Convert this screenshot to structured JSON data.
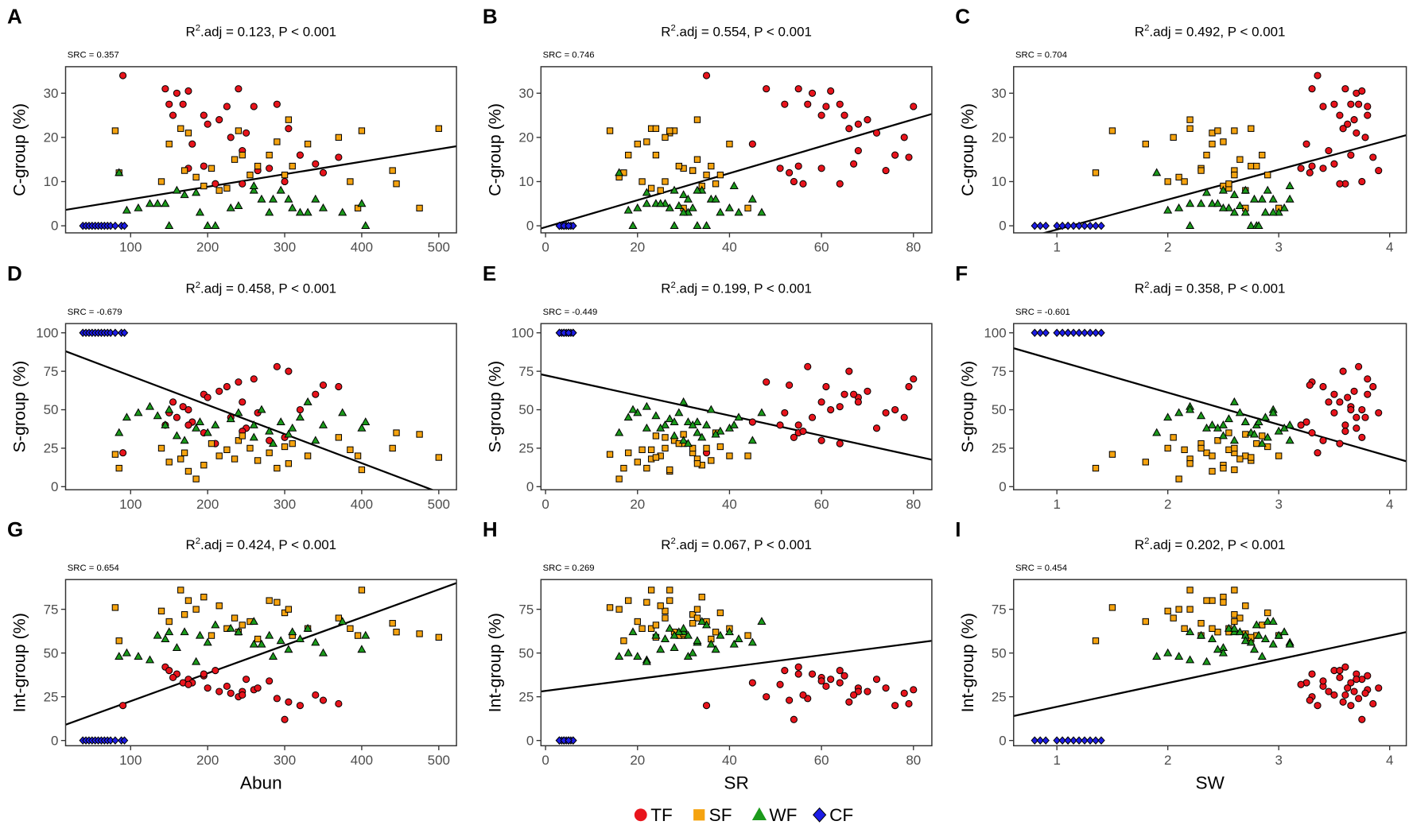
{
  "chart_data": {
    "type": "scatter",
    "grid": false,
    "legend_position": "bottom",
    "groups": [
      {
        "name": "TF",
        "color": "#e8141c",
        "shape": "circle"
      },
      {
        "name": "SF",
        "color": "#f5a30f",
        "shape": "square"
      },
      {
        "name": "WF",
        "color": "#1b9a1b",
        "shape": "triangle"
      },
      {
        "name": "CF",
        "color": "#1c1ce6",
        "shape": "diamond"
      }
    ],
    "x_axes": [
      {
        "label": "Abun",
        "lim": [
          15.6,
          523
        ],
        "ticks": [
          100,
          200,
          300,
          400,
          500
        ]
      },
      {
        "label": "SR",
        "lim": [
          -1,
          84
        ],
        "ticks": [
          0,
          20,
          40,
          60,
          80
        ]
      },
      {
        "label": "SW",
        "lim": [
          0.61,
          4.15
        ],
        "ticks": [
          1,
          2,
          3,
          4
        ]
      }
    ],
    "y_axes": [
      {
        "label": "C-group (%)",
        "lim": [
          -1.6,
          36
        ],
        "ticks": [
          0,
          10,
          20,
          30
        ]
      },
      {
        "label": "S-group (%)",
        "lim": [
          -2,
          106
        ],
        "ticks": [
          0,
          25,
          50,
          75,
          100
        ]
      },
      {
        "label": "Int-group (%)",
        "lim": [
          -3,
          92
        ],
        "ticks": [
          0,
          25,
          50,
          75
        ]
      }
    ],
    "sample_fields": [
      "Abun",
      "SR",
      "SW",
      "C-group (%)",
      "S-group (%)",
      "Int-group (%)"
    ],
    "samples": {
      "TF": [
        [
          90,
          35,
          3.35,
          34,
          22,
          20
        ],
        [
          145,
          55,
          3.6,
          31,
          40,
          42
        ],
        [
          160,
          58,
          3.7,
          30,
          45,
          38
        ],
        [
          175,
          62,
          3.75,
          30.5,
          50,
          35
        ],
        [
          150,
          52,
          3.5,
          27.5,
          48,
          40
        ],
        [
          168,
          64,
          3.65,
          27.5,
          52,
          33
        ],
        [
          155,
          60,
          3.55,
          25,
          55,
          36
        ],
        [
          195,
          65,
          3.8,
          25,
          60,
          37
        ],
        [
          200,
          68,
          3.62,
          23,
          58,
          30
        ],
        [
          215,
          70,
          3.68,
          24,
          62,
          28
        ],
        [
          240,
          48,
          3.3,
          31,
          68,
          25
        ],
        [
          225,
          61,
          3.4,
          27,
          65,
          31
        ],
        [
          260,
          80,
          3.8,
          27,
          70,
          29
        ],
        [
          290,
          57,
          3.72,
          27.5,
          78,
          24
        ],
        [
          305,
          66,
          3.58,
          22,
          75,
          22
        ],
        [
          180,
          45,
          3.25,
          18.5,
          42,
          33
        ],
        [
          230,
          78,
          3.78,
          20,
          45,
          27
        ],
        [
          250,
          72,
          3.7,
          21,
          38,
          35
        ],
        [
          245,
          68,
          3.45,
          17,
          55,
          28
        ],
        [
          320,
          76,
          3.65,
          16,
          50,
          20
        ],
        [
          370,
          79,
          3.85,
          15.5,
          65,
          21
        ],
        [
          175,
          51,
          3.2,
          13,
          40,
          32
        ],
        [
          195,
          55,
          3.3,
          13.5,
          35,
          38
        ],
        [
          280,
          60,
          3.4,
          13,
          30,
          34
        ],
        [
          340,
          67,
          3.5,
          14,
          60,
          26
        ],
        [
          350,
          53,
          3.28,
          12,
          66,
          23
        ],
        [
          265,
          74,
          3.9,
          12.5,
          48,
          30
        ],
        [
          245,
          56,
          3.6,
          9.5,
          36,
          26
        ],
        [
          210,
          64,
          3.55,
          9.5,
          28,
          40
        ],
        [
          300,
          54,
          3.75,
          10,
          32,
          12
        ]
      ],
      "SF": [
        [
          80,
          14,
          1.5,
          21.5,
          21,
          76
        ],
        [
          85,
          17,
          1.35,
          12,
          12,
          57
        ],
        [
          140,
          26,
          2.0,
          10,
          25,
          74
        ],
        [
          150,
          20,
          1.8,
          18.5,
          16,
          68
        ],
        [
          165,
          23,
          2.2,
          22,
          18,
          86
        ],
        [
          175,
          27,
          2.4,
          21,
          10,
          80
        ],
        [
          170,
          32,
          2.6,
          12.5,
          22,
          72
        ],
        [
          185,
          16,
          2.1,
          11,
          5,
          75
        ],
        [
          195,
          34,
          2.5,
          9,
          14,
          82
        ],
        [
          205,
          30,
          2.3,
          13,
          28,
          60
        ],
        [
          215,
          25,
          2.7,
          8,
          20,
          77
        ],
        [
          225,
          23,
          2.55,
          8.5,
          24,
          64
        ],
        [
          235,
          33,
          2.65,
          15,
          18,
          70
        ],
        [
          240,
          28,
          2.45,
          21.5,
          30,
          62
        ],
        [
          245,
          24,
          2.85,
          16,
          33,
          66
        ],
        [
          255,
          35,
          2.6,
          11.5,
          25,
          68
        ],
        [
          265,
          36,
          2.75,
          13.5,
          17,
          58
        ],
        [
          280,
          18,
          2.35,
          16,
          22,
          80
        ],
        [
          290,
          22,
          2.5,
          19,
          12,
          79
        ],
        [
          300,
          38,
          2.9,
          11.5,
          26,
          73
        ],
        [
          305,
          33,
          2.2,
          24,
          15,
          75
        ],
        [
          310,
          29,
          2.8,
          13.5,
          28,
          60
        ],
        [
          330,
          40,
          2.4,
          18.5,
          20,
          64
        ],
        [
          370,
          26,
          2.05,
          20,
          32,
          70
        ],
        [
          385,
          21,
          2.15,
          10,
          24,
          64
        ],
        [
          395,
          44,
          3.0,
          4,
          20,
          60
        ],
        [
          400,
          27,
          2.6,
          21.5,
          11,
          86
        ],
        [
          440,
          32,
          2.3,
          12.5,
          25,
          67
        ],
        [
          445,
          37,
          2.55,
          9.5,
          35,
          62
        ],
        [
          475,
          30,
          2.7,
          4,
          34,
          61
        ],
        [
          500,
          24,
          2.75,
          22,
          19,
          59
        ]
      ],
      "WF": [
        [
          85,
          16,
          1.9,
          12,
          35,
          48
        ],
        [
          95,
          18,
          2.0,
          3.5,
          45,
          50
        ],
        [
          110,
          20,
          2.1,
          4,
          48,
          48
        ],
        [
          125,
          22,
          2.2,
          5,
          52,
          46
        ],
        [
          135,
          24,
          2.3,
          5,
          46,
          60
        ],
        [
          145,
          26,
          2.4,
          5,
          40,
          58
        ],
        [
          160,
          28,
          2.5,
          8,
          33,
          53
        ],
        [
          170,
          30,
          2.6,
          7,
          30,
          62
        ],
        [
          185,
          22,
          2.35,
          7.5,
          38,
          45
        ],
        [
          190,
          31,
          2.7,
          3,
          42,
          60
        ],
        [
          200,
          33,
          2.75,
          0,
          35,
          56
        ],
        [
          210,
          35,
          2.8,
          0,
          40,
          66
        ],
        [
          230,
          27,
          2.55,
          4,
          44,
          64
        ],
        [
          240,
          29,
          2.65,
          4.5,
          48,
          62
        ],
        [
          260,
          34,
          2.9,
          8,
          32,
          68
        ],
        [
          270,
          36,
          2.95,
          6,
          50,
          55
        ],
        [
          280,
          38,
          3.0,
          3,
          36,
          60
        ],
        [
          285,
          31,
          2.85,
          6,
          28,
          48
        ],
        [
          295,
          33,
          2.7,
          8,
          42,
          57
        ],
        [
          305,
          37,
          2.78,
          6,
          34,
          52
        ],
        [
          310,
          40,
          3.05,
          4,
          38,
          62
        ],
        [
          320,
          42,
          2.88,
          3,
          45,
          58
        ],
        [
          330,
          30,
          2.6,
          3,
          55,
          64
        ],
        [
          340,
          45,
          3.1,
          6,
          30,
          56
        ],
        [
          350,
          32,
          2.5,
          4,
          40,
          50
        ],
        [
          375,
          47,
          2.95,
          3,
          48,
          68
        ],
        [
          400,
          25,
          2.45,
          5,
          38,
          52
        ],
        [
          405,
          28,
          2.82,
          0,
          42,
          60
        ],
        [
          150,
          19,
          2.2,
          0,
          50,
          62
        ],
        [
          260,
          41,
          3.1,
          9,
          40,
          55
        ]
      ],
      "CF": [
        [
          38,
          3,
          0.8,
          0,
          100,
          0
        ],
        [
          42,
          3.5,
          0.85,
          0,
          100,
          0
        ],
        [
          46,
          4,
          0.9,
          0,
          100,
          0
        ],
        [
          50,
          4.5,
          1.0,
          0,
          100,
          0
        ],
        [
          54,
          5,
          1.05,
          0,
          100,
          0
        ],
        [
          58,
          5.5,
          1.1,
          0,
          100,
          0
        ],
        [
          62,
          6,
          1.15,
          0,
          100,
          0
        ],
        [
          66,
          4,
          1.2,
          0,
          100,
          0
        ],
        [
          70,
          5,
          1.25,
          0,
          100,
          0
        ],
        [
          74,
          3,
          1.3,
          0,
          100,
          0
        ],
        [
          80,
          4,
          1.35,
          0,
          100,
          0
        ],
        [
          88,
          6,
          1.4,
          0,
          100,
          0
        ],
        [
          92,
          5,
          1.1,
          0,
          100,
          0
        ]
      ]
    },
    "panels": [
      {
        "letter": "A",
        "x": 0,
        "y": 0,
        "title": {
          "lead": "R",
          "sup": "2",
          "rest": ".adj = 0.123, P < 0.001"
        },
        "src": "SRC = 0.357",
        "fit": [
          [
            15.6,
            3.6
          ],
          [
            523,
            18
          ]
        ]
      },
      {
        "letter": "B",
        "x": 1,
        "y": 0,
        "title": {
          "lead": "R",
          "sup": "2",
          "rest": ".adj = 0.554, P < 0.001"
        },
        "src": "SRC = 0.746",
        "fit": [
          [
            -1,
            -0.6
          ],
          [
            84,
            25.3
          ]
        ]
      },
      {
        "letter": "C",
        "x": 2,
        "y": 0,
        "title": {
          "lead": "R",
          "sup": "2",
          "rest": ".adj = 0.492, P < 0.001"
        },
        "src": "SRC = 0.704",
        "fit": [
          [
            0.61,
            -3.5
          ],
          [
            4.15,
            20.5
          ]
        ]
      },
      {
        "letter": "D",
        "x": 0,
        "y": 1,
        "title": {
          "lead": "R",
          "sup": "2",
          "rest": ".adj = 0.458, P < 0.001"
        },
        "src": "SRC = -0.679",
        "fit": [
          [
            15.6,
            88
          ],
          [
            523,
            -8
          ]
        ]
      },
      {
        "letter": "E",
        "x": 1,
        "y": 1,
        "title": {
          "lead": "R",
          "sup": "2",
          "rest": ".adj = 0.199, P < 0.001"
        },
        "src": "SRC = -0.449",
        "fit": [
          [
            -1,
            73
          ],
          [
            84,
            17.5
          ]
        ]
      },
      {
        "letter": "F",
        "x": 2,
        "y": 1,
        "title": {
          "lead": "R",
          "sup": "2",
          "rest": ".adj = 0.358, P < 0.001"
        },
        "src": "SRC = -0.601",
        "fit": [
          [
            0.61,
            90
          ],
          [
            4.15,
            16.5
          ]
        ]
      },
      {
        "letter": "G",
        "x": 0,
        "y": 2,
        "title": {
          "lead": "R",
          "sup": "2",
          "rest": ".adj = 0.424, P < 0.001"
        },
        "src": "SRC = 0.654",
        "fit": [
          [
            15.6,
            9
          ],
          [
            523,
            90
          ]
        ]
      },
      {
        "letter": "H",
        "x": 1,
        "y": 2,
        "title": {
          "lead": "R",
          "sup": "2",
          "rest": ".adj = 0.067, P < 0.001"
        },
        "src": "SRC = 0.269",
        "fit": [
          [
            -1,
            28
          ],
          [
            84,
            57
          ]
        ]
      },
      {
        "letter": "I",
        "x": 2,
        "y": 2,
        "title": {
          "lead": "R",
          "sup": "2",
          "rest": ".adj = 0.202, P < 0.001"
        },
        "src": "SRC = 0.454",
        "fit": [
          [
            0.61,
            14
          ],
          [
            4.15,
            62
          ]
        ]
      }
    ]
  }
}
